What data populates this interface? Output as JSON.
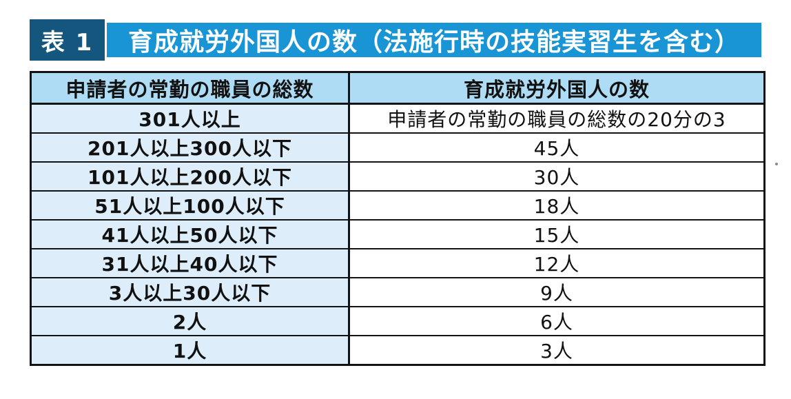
{
  "title": {
    "tag_label": "表 1",
    "text": "育成就労外国人の数（法施行時の技能実習生を含む）",
    "tag_bg": "#14567e",
    "bar_bg": "#1994d4",
    "text_color": "#ffffff"
  },
  "table": {
    "columns": [
      "申請者の常勤の職員の総数",
      "育成就労外国人の数"
    ],
    "rows": [
      {
        "staff": "301人以上",
        "workers": "申請者の常勤の職員の総数の20分の3"
      },
      {
        "staff": "201人以上300人以下",
        "workers": "45人"
      },
      {
        "staff": "101人以上200人以下",
        "workers": "30人"
      },
      {
        "staff": "51人以上100人以下",
        "workers": "18人"
      },
      {
        "staff": "41人以上50人以下",
        "workers": "15人"
      },
      {
        "staff": "31人以上40人以下",
        "workers": "12人"
      },
      {
        "staff": "3人以上30人以下",
        "workers": "9人"
      },
      {
        "staff": "2人",
        "workers": "6人"
      },
      {
        "staff": "1人",
        "workers": "3人"
      }
    ],
    "colors": {
      "header_bg": "#aedcf5",
      "label_column_bg": "#ddeefa",
      "value_column_bg": "#ffffff",
      "border": "#121212"
    }
  }
}
